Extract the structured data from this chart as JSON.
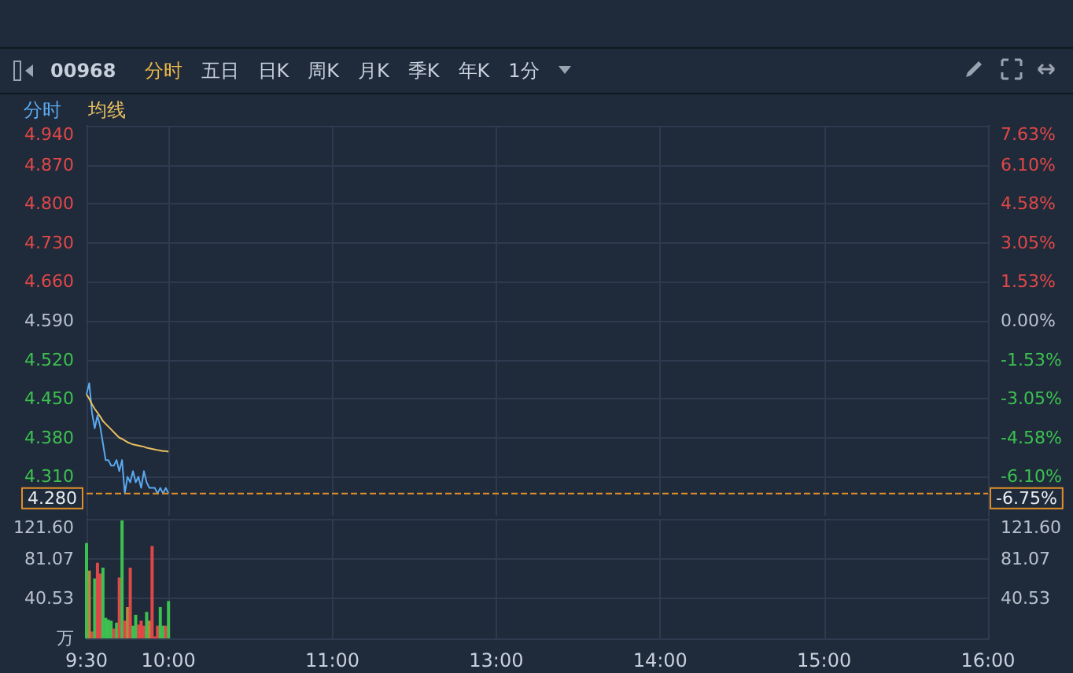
{
  "chart_data": [
    {
      "type": "line",
      "annotations": [
        "00968",
        "分时",
        "五日",
        "日K",
        "周K",
        "月K",
        "季K",
        "年K",
        "1分",
        "-6.75%"
      ],
      "legend": "top left",
      "grid": true,
      "tick_labels": "y",
      "marker": "none",
      "categories": [
        null,
        null,
        null,
        null,
        null,
        null,
        null,
        null,
        null,
        null,
        null,
        null,
        null,
        null,
        null,
        null,
        null,
        null,
        null,
        null,
        null,
        null,
        null,
        null,
        null,
        null,
        null,
        null,
        null,
        null,
        null,
        null,
        null,
        null,
        null,
        null,
        null,
        null,
        null,
        null,
        null,
        null,
        null,
        null,
        null,
        null,
        null,
        null,
        null,
        null,
        null,
        null,
        null,
        null,
        null,
        null,
        null,
        null,
        null,
        null,
        null,
        null,
        null,
        null,
        null,
        null,
        null,
        null,
        null,
        null,
        null,
        null,
        null,
        null,
        null,
        null,
        null,
        null,
        null,
        null,
        null,
        null,
        null,
        null,
        null,
        null,
        null,
        null,
        null,
        null,
        null,
        null,
        null,
        null,
        null,
        null,
        null,
        null,
        null,
        null,
        null,
        null,
        null,
        null,
        null,
        null,
        null,
        null,
        null,
        null,
        null,
        null,
        null,
        null,
        null,
        null,
        null,
        null,
        null,
        null,
        null,
        null,
        null,
        null,
        null,
        null,
        null,
        null,
        null,
        null,
        null,
        null,
        null,
        null,
        null,
        null,
        null,
        null,
        null,
        null,
        null,
        null,
        null,
        null,
        null,
        null,
        null,
        null,
        null,
        null,
        null,
        null,
        null,
        null,
        null,
        null,
        null,
        null,
        null,
        null,
        null,
        null,
        null,
        null,
        null,
        null,
        null,
        null,
        null,
        null,
        null,
        null,
        null,
        null,
        null,
        null,
        null,
        null,
        null,
        null,
        null,
        null,
        null,
        null,
        null,
        null,
        null,
        null,
        null,
        null,
        null,
        null,
        null,
        null,
        null,
        null,
        null,
        null,
        null,
        null,
        null,
        null,
        null,
        null,
        null,
        null,
        null,
        null,
        null,
        null,
        null,
        null,
        null,
        null,
        null,
        null,
        null,
        null,
        null,
        null,
        null,
        null,
        null,
        null,
        null,
        null,
        null,
        null,
        null,
        null,
        null,
        null,
        null,
        null,
        null,
        null,
        null,
        null,
        null,
        null,
        null,
        null,
        null,
        null,
        null,
        null,
        null,
        null,
        null,
        null,
        null,
        null,
        null,
        null,
        null,
        null,
        null,
        null,
        null,
        null,
        null,
        null,
        null,
        null,
        null,
        null,
        null,
        null,
        null,
        null,
        null,
        null,
        null,
        null,
        null,
        null,
        null,
        null,
        null,
        null,
        null,
        null,
        null,
        null,
        null,
        null,
        null,
        null,
        null,
        null,
        null,
        null,
        null,
        null,
        null,
        null,
        null,
        null,
        null,
        null,
        null,
        null,
        null,
        null,
        null,
        null,
        null,
        null,
        null,
        null,
        null,
        null,
        null,
        null,
        null,
        null,
        null,
        null,
        null,
        null,
        null,
        null,
        null,
        null,
        null,
        null,
        null,
        null,
        null,
        null,
        null
      ],
      "ylim": [
        4.24,
        4.94
      ],
      "yticks": [
        {
          "value": 4.31,
          "label": "4.310"
        },
        {
          "value": 4.38,
          "label": "4.380"
        },
        {
          "value": 4.45,
          "label": "4.450"
        },
        {
          "value": 4.52,
          "label": "4.520"
        },
        {
          "value": 4.59,
          "label": "4.590"
        },
        {
          "value": 4.66,
          "label": "4.660"
        },
        {
          "value": 4.73,
          "label": "4.730"
        },
        {
          "value": 4.8,
          "label": "4.800"
        },
        {
          "value": 4.87,
          "label": "4.870"
        },
        {
          "value": 4.94,
          "label": "4.940"
        }
      ],
      "y2lim": [
        -7.63,
        7.63
      ],
      "y2ticks": [
        {
          "value": -6.1,
          "label": "-6.10%"
        },
        {
          "value": -4.58,
          "label": "-4.58%"
        },
        {
          "value": -3.05,
          "label": "-3.05%"
        },
        {
          "value": -1.53,
          "label": "-1.53%"
        },
        {
          "value": 0,
          "label": "0.00%"
        },
        {
          "value": 1.53,
          "label": "1.53%"
        },
        {
          "value": 3.05,
          "label": "3.05%"
        },
        {
          "value": 4.58,
          "label": "4.58%"
        },
        {
          "value": 6.1,
          "label": "6.10%"
        },
        {
          "value": 7.63,
          "label": "7.63%"
        }
      ],
      "ref_lines": [
        {
          "axis": "y",
          "value": 4.28,
          "label": "4.280",
          "color": "#e0902a",
          "line_style": "dashed"
        }
      ],
      "series": [
        {
          "name": "分时",
          "color": "#5aa9ef",
          "values": [
            4.458,
            4.478,
            4.425,
            4.397,
            4.42,
            4.4,
            4.37,
            4.34,
            4.34,
            4.33,
            4.33,
            4.34,
            4.32,
            4.34,
            4.28,
            4.31,
            4.3,
            4.32,
            4.3,
            4.31,
            4.29,
            4.32,
            4.3,
            4.29,
            4.29,
            4.29,
            4.28,
            4.29,
            4.28,
            4.29,
            4.28,
            null,
            null,
            null,
            null,
            null,
            null,
            null,
            null,
            null,
            null,
            null,
            null,
            null,
            null,
            null,
            null,
            null,
            null,
            null,
            null,
            null,
            null,
            null,
            null,
            null,
            null,
            null,
            null,
            null,
            null,
            null,
            null,
            null,
            null,
            null,
            null,
            null,
            null,
            null,
            null,
            null,
            null,
            null,
            null,
            null,
            null,
            null,
            null,
            null,
            null,
            null,
            null,
            null,
            null,
            null,
            null,
            null,
            null,
            null,
            null,
            null,
            null,
            null,
            null,
            null,
            null,
            null,
            null,
            null,
            null,
            null,
            null,
            null,
            null,
            null,
            null,
            null,
            null,
            null,
            null,
            null,
            null,
            null,
            null,
            null,
            null,
            null,
            null,
            null,
            null,
            null,
            null,
            null,
            null,
            null,
            null,
            null,
            null,
            null,
            null,
            null,
            null,
            null,
            null,
            null,
            null,
            null,
            null,
            null,
            null,
            null,
            null,
            null,
            null,
            null,
            null,
            null,
            null,
            null,
            null,
            null,
            null,
            null,
            null,
            null,
            null,
            null,
            null,
            null,
            null,
            null,
            null,
            null,
            null,
            null,
            null,
            null,
            null,
            null,
            null,
            null,
            null,
            null,
            null,
            null,
            null,
            null,
            null,
            null,
            null,
            null,
            null,
            null,
            null,
            null,
            null,
            null,
            null,
            null,
            null,
            null,
            null,
            null,
            null,
            null,
            null,
            null,
            null,
            null,
            null,
            null,
            null,
            null,
            null,
            null,
            null,
            null,
            null,
            null,
            null,
            null,
            null,
            null,
            null,
            null,
            null,
            null,
            null,
            null,
            null,
            null,
            null,
            null,
            null,
            null,
            null,
            null,
            null,
            null,
            null,
            null,
            null,
            null,
            null,
            null,
            null,
            null,
            null,
            null,
            null,
            null,
            null,
            null,
            null,
            null,
            null,
            null,
            null,
            null,
            null,
            null,
            null,
            null,
            null,
            null,
            null,
            null,
            null,
            null,
            null,
            null,
            null,
            null,
            null,
            null,
            null,
            null,
            null,
            null,
            null,
            null,
            null,
            null,
            null,
            null,
            null,
            null,
            null,
            null,
            null,
            null,
            null,
            null,
            null,
            null,
            null,
            null,
            null,
            null,
            null,
            null,
            null,
            null,
            null,
            null,
            null,
            null,
            null,
            null,
            null,
            null,
            null,
            null,
            null,
            null,
            null,
            null,
            null,
            null,
            null,
            null,
            null,
            null,
            null,
            null,
            null,
            null,
            null,
            null,
            null,
            null,
            null,
            null,
            null,
            null,
            null,
            null,
            null,
            null,
            null
          ]
        },
        {
          "name": "均线",
          "color": "#e8c060",
          "values": [
            4.458,
            4.45,
            4.44,
            4.432,
            4.425,
            4.418,
            4.41,
            4.405,
            4.4,
            4.395,
            4.39,
            4.385,
            4.38,
            4.378,
            4.375,
            4.372,
            4.37,
            4.368,
            4.367,
            4.366,
            4.365,
            4.364,
            4.362,
            4.361,
            4.36,
            4.359,
            4.358,
            4.357,
            4.356,
            4.356,
            4.355,
            null,
            null,
            null,
            null,
            null,
            null,
            null,
            null,
            null,
            null,
            null,
            null,
            null,
            null,
            null,
            null,
            null,
            null,
            null,
            null,
            null,
            null,
            null,
            null,
            null,
            null,
            null,
            null,
            null,
            null,
            null,
            null,
            null,
            null,
            null,
            null,
            null,
            null,
            null,
            null,
            null,
            null,
            null,
            null,
            null,
            null,
            null,
            null,
            null,
            null,
            null,
            null,
            null,
            null,
            null,
            null,
            null,
            null,
            null,
            null,
            null,
            null,
            null,
            null,
            null,
            null,
            null,
            null,
            null,
            null,
            null,
            null,
            null,
            null,
            null,
            null,
            null,
            null,
            null,
            null,
            null,
            null,
            null,
            null,
            null,
            null,
            null,
            null,
            null,
            null,
            null,
            null,
            null,
            null,
            null,
            null,
            null,
            null,
            null,
            null,
            null,
            null,
            null,
            null,
            null,
            null,
            null,
            null,
            null,
            null,
            null,
            null,
            null,
            null,
            null,
            null,
            null,
            null,
            null,
            null,
            null,
            null,
            null,
            null,
            null,
            null,
            null,
            null,
            null,
            null,
            null,
            null,
            null,
            null,
            null,
            null,
            null,
            null,
            null,
            null,
            null,
            null,
            null,
            null,
            null,
            null,
            null,
            null,
            null,
            null,
            null,
            null,
            null,
            null,
            null,
            null,
            null,
            null,
            null,
            null,
            null,
            null,
            null,
            null,
            null,
            null,
            null,
            null,
            null,
            null,
            null,
            null,
            null,
            null,
            null,
            null,
            null,
            null,
            null,
            null,
            null,
            null,
            null,
            null,
            null,
            null,
            null,
            null,
            null,
            null,
            null,
            null,
            null,
            null,
            null,
            null,
            null,
            null,
            null,
            null,
            null,
            null,
            null,
            null,
            null,
            null,
            null,
            null,
            null,
            null,
            null,
            null,
            null,
            null,
            null,
            null,
            null,
            null,
            null,
            null,
            null,
            null,
            null,
            null,
            null,
            null,
            null,
            null,
            null,
            null,
            null,
            null,
            null,
            null,
            null,
            null,
            null,
            null,
            null,
            null,
            null,
            null,
            null,
            null,
            null,
            null,
            null,
            null,
            null,
            null,
            null,
            null,
            null,
            null,
            null,
            null,
            null,
            null,
            null,
            null,
            null,
            null,
            null,
            null,
            null,
            null,
            null,
            null,
            null,
            null,
            null,
            null,
            null,
            null,
            null,
            null,
            null,
            null,
            null,
            null,
            null,
            null,
            null,
            null,
            null,
            null,
            null,
            null,
            null,
            null,
            null,
            null,
            null,
            null,
            null,
            null,
            null,
            null,
            null,
            null
          ]
        }
      ]
    },
    {
      "type": "bar",
      "grid": true,
      "categories": [
        "9:30",
        null,
        null,
        null,
        null,
        null,
        null,
        null,
        null,
        null,
        null,
        null,
        null,
        null,
        null,
        null,
        null,
        null,
        null,
        null,
        null,
        null,
        null,
        null,
        null,
        null,
        null,
        null,
        null,
        null,
        "10:00",
        null,
        null,
        null,
        null,
        null,
        null,
        null,
        null,
        null,
        null,
        null,
        null,
        null,
        null,
        null,
        null,
        null,
        null,
        null,
        null,
        null,
        null,
        null,
        null,
        null,
        null,
        null,
        null,
        null,
        null,
        null,
        null,
        null,
        null,
        null,
        null,
        null,
        null,
        null,
        null,
        null,
        null,
        null,
        null,
        null,
        null,
        null,
        null,
        null,
        null,
        null,
        null,
        null,
        null,
        null,
        null,
        null,
        null,
        null,
        "11:00",
        null,
        null,
        null,
        null,
        null,
        null,
        null,
        null,
        null,
        null,
        null,
        null,
        null,
        null,
        null,
        null,
        null,
        null,
        null,
        null,
        null,
        null,
        null,
        null,
        null,
        null,
        null,
        null,
        null,
        null,
        null,
        null,
        null,
        null,
        null,
        null,
        null,
        null,
        null,
        null,
        null,
        null,
        null,
        null,
        null,
        null,
        null,
        null,
        null,
        null,
        null,
        null,
        null,
        null,
        null,
        null,
        null,
        null,
        null,
        "13:00",
        null,
        null,
        null,
        null,
        null,
        null,
        null,
        null,
        null,
        null,
        null,
        null,
        null,
        null,
        null,
        null,
        null,
        null,
        null,
        null,
        null,
        null,
        null,
        null,
        null,
        null,
        null,
        null,
        null,
        null,
        null,
        null,
        null,
        null,
        null,
        null,
        null,
        null,
        null,
        null,
        null,
        null,
        null,
        null,
        null,
        null,
        null,
        null,
        null,
        null,
        null,
        null,
        null,
        null,
        null,
        null,
        null,
        null,
        null,
        "14:00",
        null,
        null,
        null,
        null,
        null,
        null,
        null,
        null,
        null,
        null,
        null,
        null,
        null,
        null,
        null,
        null,
        null,
        null,
        null,
        null,
        null,
        null,
        null,
        null,
        null,
        null,
        null,
        null,
        null,
        null,
        null,
        null,
        null,
        null,
        null,
        null,
        null,
        null,
        null,
        null,
        null,
        null,
        null,
        null,
        null,
        null,
        null,
        null,
        null,
        null,
        null,
        null,
        null,
        null,
        null,
        null,
        null,
        null,
        null,
        "15:00",
        null,
        null,
        null,
        null,
        null,
        null,
        null,
        null,
        null,
        null,
        null,
        null,
        null,
        null,
        null,
        null,
        null,
        null,
        null,
        null,
        null,
        null,
        null,
        null,
        null,
        null,
        null,
        null,
        null,
        null,
        null,
        null,
        null,
        null,
        null,
        null,
        null,
        null,
        null,
        null,
        null,
        null,
        null,
        null,
        null,
        null,
        null,
        null,
        null,
        null,
        null,
        null,
        null,
        null,
        null,
        null,
        null,
        null,
        null,
        "16:00"
      ],
      "ylim": [
        0,
        121.6
      ],
      "yticks": [
        {
          "value": 0,
          "label": "万"
        },
        40.53,
        81.07,
        {
          "value": 121.6,
          "label": "121.60"
        }
      ],
      "y2lim": [
        0,
        121.6
      ],
      "y2ticks": [
        40.53,
        81.07,
        {
          "value": 121.6,
          "label": "121.60"
        }
      ],
      "values": [
        97,
        69,
        7,
        61,
        77,
        66,
        72,
        21,
        19,
        18,
        10,
        16,
        62,
        120,
        18,
        32,
        72,
        13,
        24,
        14,
        18,
        13,
        27,
        18,
        94,
        2,
        13,
        32,
        13,
        13,
        38,
        null,
        null,
        null,
        null,
        null,
        null,
        null,
        null,
        null,
        null,
        null,
        null,
        null,
        null,
        null,
        null,
        null,
        null,
        null,
        null,
        null,
        null,
        null,
        null,
        null,
        null,
        null,
        null,
        null,
        null,
        null,
        null,
        null,
        null,
        null,
        null,
        null,
        null,
        null,
        null,
        null,
        null,
        null,
        null,
        null,
        null,
        null,
        null,
        null,
        null,
        null,
        null,
        null,
        null,
        null,
        null,
        null,
        null,
        null,
        null,
        null,
        null,
        null,
        null,
        null,
        null,
        null,
        null,
        null,
        null,
        null,
        null,
        null,
        null,
        null,
        null,
        null,
        null,
        null,
        null,
        null,
        null,
        null,
        null,
        null,
        null,
        null,
        null,
        null,
        null,
        null,
        null,
        null,
        null,
        null,
        null,
        null,
        null,
        null,
        null,
        null,
        null,
        null,
        null,
        null,
        null,
        null,
        null,
        null,
        null,
        null,
        null,
        null,
        null,
        null,
        null,
        null,
        null,
        null,
        null,
        null,
        null,
        null,
        null,
        null,
        null,
        null,
        null,
        null,
        null,
        null,
        null,
        null,
        null,
        null,
        null,
        null,
        null,
        null,
        null,
        null,
        null,
        null,
        null,
        null,
        null,
        null,
        null,
        null,
        null,
        null,
        null,
        null,
        null,
        null,
        null,
        null,
        null,
        null,
        null,
        null,
        null,
        null,
        null,
        null,
        null,
        null,
        null,
        null,
        null,
        null,
        null,
        null,
        null,
        null,
        null,
        null,
        null,
        null,
        null,
        null,
        null,
        null,
        null,
        null,
        null,
        null,
        null,
        null,
        null,
        null,
        null,
        null,
        null,
        null,
        null,
        null,
        null,
        null,
        null,
        null,
        null,
        null,
        null,
        null,
        null,
        null,
        null,
        null,
        null,
        null,
        null,
        null,
        null,
        null,
        null,
        null,
        null,
        null,
        null,
        null,
        null,
        null,
        null,
        null,
        null,
        null,
        null,
        null,
        null,
        null,
        null,
        null,
        null,
        null,
        null,
        null,
        null,
        null,
        null,
        null,
        null,
        null,
        null,
        null,
        null,
        null,
        null,
        null,
        null,
        null,
        null,
        null,
        null,
        null,
        null,
        null,
        null,
        null,
        null,
        null,
        null,
        null,
        null,
        null,
        null,
        null,
        null,
        null,
        null,
        null,
        null,
        null,
        null,
        null,
        null,
        null,
        null,
        null,
        null,
        null,
        null,
        null,
        null,
        null,
        null,
        null,
        null,
        null,
        null,
        null,
        null,
        null,
        null,
        null,
        null,
        null,
        null,
        null,
        null
      ],
      "colors": [
        "#3cc050",
        "#b08a40",
        "#e04848",
        "#3cc050",
        "#e04848",
        "#e04848",
        "#3cc050",
        "#3cc050",
        "#3cc050",
        "#3cc050",
        "#e04848",
        "#3cc050",
        "#e04848",
        "#3cc050",
        "#e04848",
        "#b08a40",
        "#e04848",
        "#3cc050",
        "#3cc050",
        "#e04848",
        "#e04848",
        "#e04848",
        "#3cc050",
        "#b08a40",
        "#e04848",
        "#e04848",
        "#e04848",
        "#3cc050",
        "#3cc050",
        "#e04848",
        "#3cc050",
        null,
        null,
        null,
        null,
        null,
        null,
        null,
        null,
        null,
        null,
        null,
        null,
        null,
        null,
        null,
        null,
        null,
        null,
        null,
        null,
        null,
        null,
        null,
        null,
        null,
        null,
        null,
        null,
        null,
        null,
        null,
        null,
        null,
        null,
        null,
        null,
        null,
        null,
        null,
        null,
        null,
        null,
        null,
        null,
        null,
        null,
        null,
        null,
        null,
        null,
        null,
        null,
        null,
        null,
        null,
        null,
        null,
        null,
        null,
        null,
        null,
        null,
        null,
        null,
        null,
        null,
        null,
        null,
        null,
        null,
        null,
        null,
        null,
        null,
        null,
        null,
        null,
        null,
        null,
        null,
        null,
        null,
        null,
        null,
        null,
        null,
        null,
        null,
        null,
        null,
        null,
        null,
        null,
        null,
        null,
        null,
        null,
        null,
        null,
        null,
        null,
        null,
        null,
        null,
        null,
        null,
        null,
        null,
        null,
        null,
        null,
        null,
        null,
        null,
        null,
        null,
        null,
        null,
        null,
        null,
        null,
        null,
        null,
        null,
        null,
        null,
        null,
        null,
        null,
        null,
        null,
        null,
        null,
        null,
        null,
        null,
        null,
        null,
        null,
        null,
        null,
        null,
        null,
        null,
        null,
        null,
        null,
        null,
        null,
        null,
        null,
        null,
        null,
        null,
        null,
        null,
        null,
        null,
        null,
        null,
        null,
        null,
        null,
        null,
        null,
        null,
        null,
        null,
        null,
        null,
        null,
        null,
        null,
        null,
        null,
        null,
        null,
        null,
        null,
        null,
        null,
        null,
        null,
        null,
        null,
        null,
        null,
        null,
        null,
        null,
        null,
        null,
        null,
        null,
        null,
        null,
        null,
        null,
        null,
        null,
        null,
        null,
        null,
        null,
        null,
        null,
        null,
        null,
        null,
        null,
        null,
        null,
        null,
        null,
        null,
        null,
        null,
        null,
        null,
        null,
        null,
        null,
        null,
        null,
        null,
        null,
        null,
        null,
        null,
        null,
        null,
        null,
        null,
        null,
        null,
        null,
        null,
        null,
        null,
        null,
        null,
        null,
        null,
        null,
        null,
        null,
        null,
        null,
        null,
        null,
        null,
        null,
        null,
        null,
        null,
        null,
        null,
        null,
        null,
        null,
        null,
        null,
        null,
        null,
        null,
        null,
        null,
        null,
        null,
        null,
        null,
        null,
        null,
        null,
        null,
        null,
        null,
        null,
        null,
        null,
        null,
        null,
        null,
        null,
        null,
        null,
        null,
        null,
        null,
        null,
        null,
        null,
        null,
        null,
        null,
        null,
        null,
        null,
        null,
        null
      ]
    }
  ]
}
